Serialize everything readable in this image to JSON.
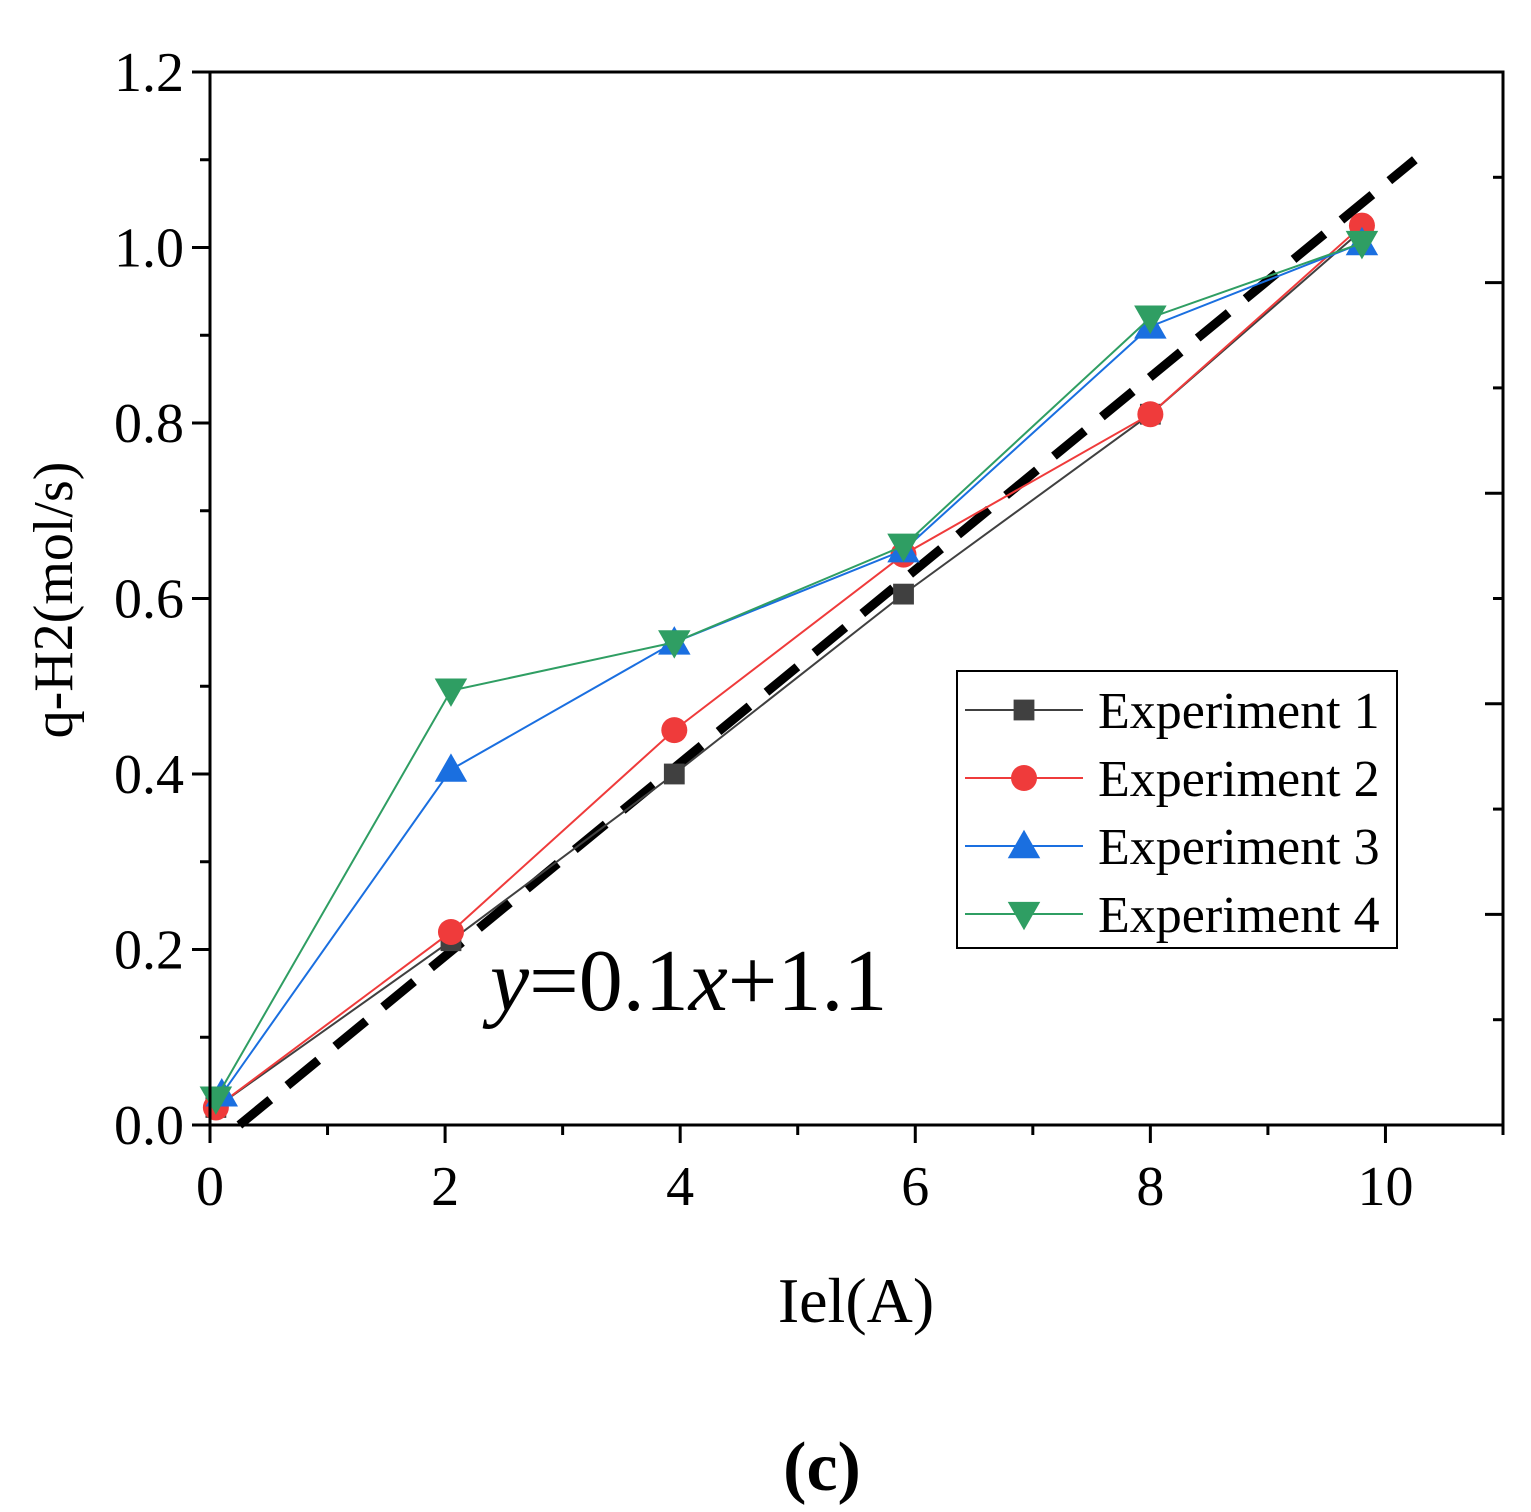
{
  "chart_data": {
    "type": "line",
    "title": "",
    "xlabel": "Iel(A)",
    "ylabel": "q-H2(mol/s)",
    "xlim": [
      0,
      11
    ],
    "ylim": [
      0,
      1.2
    ],
    "x_ticks": [
      "0",
      "2",
      "4",
      "6",
      "8",
      "10"
    ],
    "y_ticks": [
      "0.0",
      "0.2",
      "0.4",
      "0.6",
      "0.8",
      "1.0",
      "1.2"
    ],
    "legend_position": "right",
    "series": [
      {
        "name": "Experiment 1",
        "color": "#404040",
        "marker": "square",
        "x": [
          0.05,
          2.05,
          3.95,
          5.9,
          8.0,
          9.8
        ],
        "y": [
          0.02,
          0.21,
          0.4,
          0.605,
          0.81,
          1.02
        ]
      },
      {
        "name": "Experiment 2",
        "color": "#ef3b3b",
        "marker": "circle",
        "x": [
          0.05,
          2.05,
          3.95,
          5.9,
          8.0,
          9.8
        ],
        "y": [
          0.02,
          0.22,
          0.45,
          0.65,
          0.81,
          1.025
        ]
      },
      {
        "name": "Experiment 3",
        "color": "#1a6fe0",
        "marker": "triangle-up",
        "x": [
          0.1,
          2.05,
          3.95,
          5.9,
          8.0,
          9.8
        ],
        "y": [
          0.035,
          0.405,
          0.55,
          0.655,
          0.91,
          1.005
        ]
      },
      {
        "name": "Experiment 4",
        "color": "#2f9e63",
        "marker": "triangle-down",
        "x": [
          0.05,
          2.05,
          3.95,
          5.9,
          8.0,
          9.8
        ],
        "y": [
          0.03,
          0.495,
          0.55,
          0.66,
          0.92,
          1.005
        ]
      }
    ],
    "fit_line": {
      "label_y": "y",
      "label_eq": "=0.1",
      "label_x": "x",
      "label_rest": "+1.1",
      "color": "#000000",
      "x": [
        0.25,
        10.25
      ],
      "y": [
        0.0,
        1.1
      ]
    },
    "panel_label": "(c)"
  }
}
